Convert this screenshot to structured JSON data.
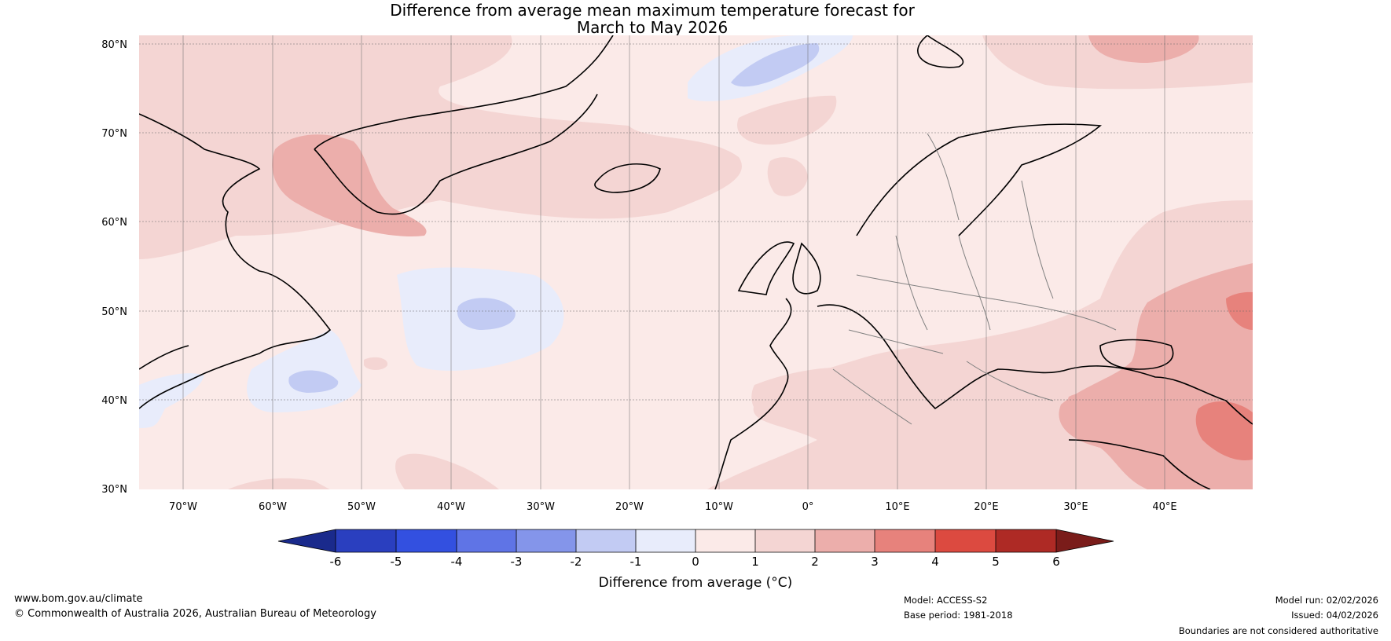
{
  "title": {
    "line1": "Difference from average mean maximum temperature forecast for",
    "line2": "March to May 2026"
  },
  "map": {
    "lat_labels": [
      "80°N",
      "70°N",
      "60°N",
      "50°N",
      "40°N",
      "30°N"
    ],
    "lon_labels": [
      "70°W",
      "60°W",
      "50°W",
      "40°W",
      "30°W",
      "20°W",
      "10°W",
      "0°",
      "10°E",
      "20°E",
      "30°E",
      "40°E"
    ],
    "anomaly_colors": {
      "neg_1_0": "#e8ecfb",
      "neg_2_1": "#c2cbf3",
      "pos_0_1": "#fbeae8",
      "pos_1_2": "#f4d5d3",
      "pos_2_3": "#ecaeab",
      "pos_3_4": "#e7827c"
    }
  },
  "colorbar": {
    "label": "Difference from average (°C)",
    "ticks": [
      "-6",
      "-5",
      "-4",
      "-3",
      "-2",
      "-1",
      "0",
      "1",
      "2",
      "3",
      "4",
      "5",
      "6"
    ],
    "colors": [
      "#1a2a8c",
      "#2a3fbf",
      "#3350e0",
      "#5f74e6",
      "#8495ea",
      "#c2cbf3",
      "#e8ecfb",
      "#fbeae8",
      "#f4d5d3",
      "#ecaeab",
      "#e7827c",
      "#dc4a40",
      "#ae2a25",
      "#7a1c1a"
    ]
  },
  "footer": {
    "website": "www.bom.gov.au/climate",
    "copyright": "© Commonwealth of Australia 2026, Australian Bureau of Meteorology",
    "model": "Model: ACCESS-S2",
    "base_period": "Base period: 1981-2018",
    "model_run": "Model run: 02/02/2026",
    "issued": "Issued: 04/02/2026",
    "disclaimer": "Boundaries are not considered authoritative"
  }
}
